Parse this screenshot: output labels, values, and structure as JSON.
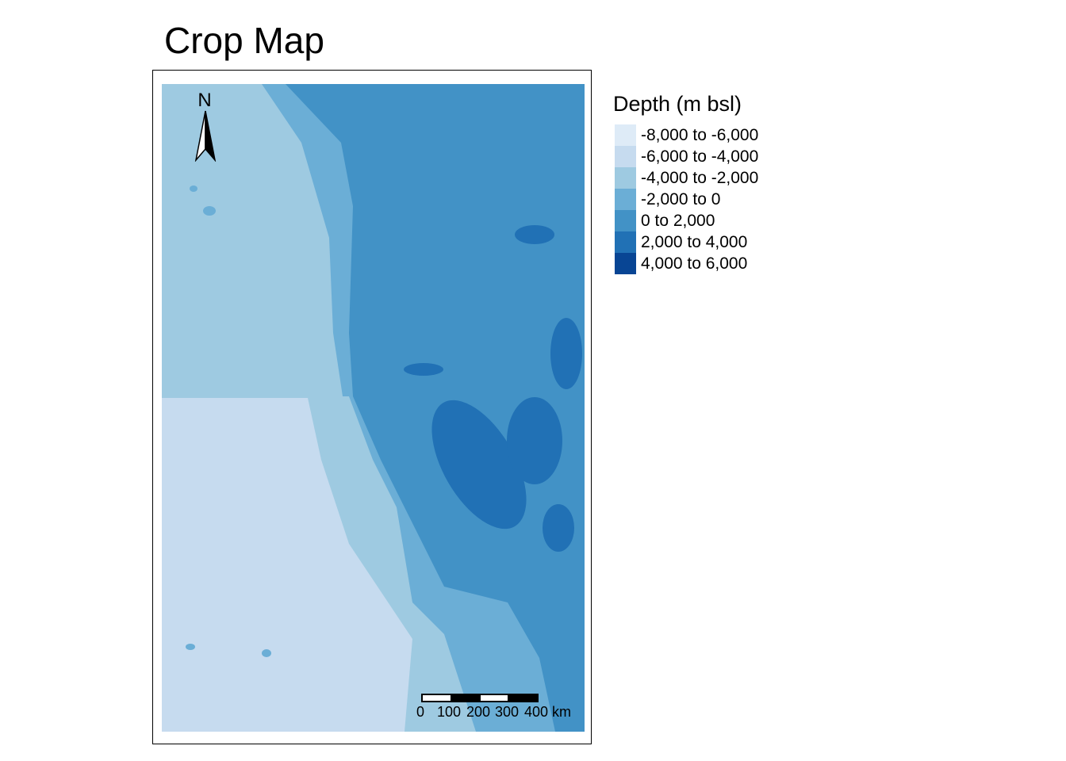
{
  "title": "Crop Map",
  "legend": {
    "title": "Depth (m bsl)",
    "items": [
      {
        "label": "-8,000 to -6,000",
        "color": "#deebf7"
      },
      {
        "label": "-6,000 to -4,000",
        "color": "#c6dbef"
      },
      {
        "label": "-4,000 to -2,000",
        "color": "#9ecae1"
      },
      {
        "label": "-2,000 to 0",
        "color": "#6baed6"
      },
      {
        "label": "0 to 2,000",
        "color": "#4292c6"
      },
      {
        "label": "2,000 to 4,000",
        "color": "#2171b5"
      },
      {
        "label": "4,000 to 6,000",
        "color": "#084594"
      }
    ]
  },
  "north_arrow": {
    "label": "N"
  },
  "scale_bar": {
    "labels": [
      "0",
      "100",
      "200",
      "300",
      "400 km"
    ]
  }
}
